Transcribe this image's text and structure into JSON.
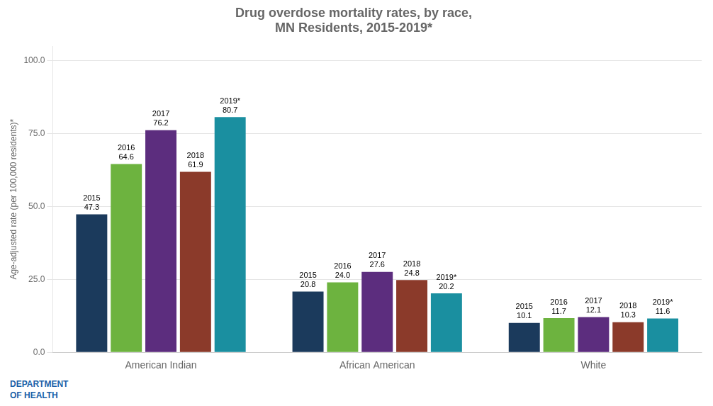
{
  "chart_data": {
    "type": "bar",
    "title": "Drug overdose mortality rates, by race,\nMN Residents, 2015-2019*",
    "y_label": "Age-adjusted rate (per 100,000 residents)*",
    "categories": [
      "American Indian",
      "African American",
      "White"
    ],
    "series": [
      {
        "name": "2015",
        "color": "#1b3a5c",
        "values": [
          47.3,
          20.8,
          10.1
        ],
        "value_labels": [
          "47.3",
          "20.8",
          "10.1"
        ]
      },
      {
        "name": "2016",
        "color": "#6db33f",
        "values": [
          64.6,
          24.0,
          11.7
        ],
        "value_labels": [
          "64.6",
          "24.0",
          "11.7"
        ]
      },
      {
        "name": "2017",
        "color": "#5c2d7e",
        "values": [
          76.2,
          27.6,
          12.1
        ],
        "value_labels": [
          "76.2",
          "27.6",
          "12.1"
        ]
      },
      {
        "name": "2018",
        "color": "#8b3a2a",
        "values": [
          61.9,
          24.8,
          10.3
        ],
        "value_labels": [
          "61.9",
          "24.8",
          "10.3"
        ]
      },
      {
        "name": "2019*",
        "color": "#1a8fa0",
        "values": [
          80.7,
          20.2,
          11.6
        ],
        "value_labels": [
          "80.7",
          "20.2",
          "11.6"
        ]
      }
    ],
    "ylim": [
      0,
      105
    ],
    "yticks": [
      {
        "value": 0,
        "label": "0.0"
      },
      {
        "value": 25,
        "label": "25.0"
      },
      {
        "value": 50,
        "label": "50.0"
      },
      {
        "value": 75,
        "label": "75.0"
      },
      {
        "value": 100,
        "label": "100.0"
      }
    ],
    "grid": true,
    "data_labels": true,
    "annotation": "DEPARTMENT\nOF HEALTH"
  }
}
